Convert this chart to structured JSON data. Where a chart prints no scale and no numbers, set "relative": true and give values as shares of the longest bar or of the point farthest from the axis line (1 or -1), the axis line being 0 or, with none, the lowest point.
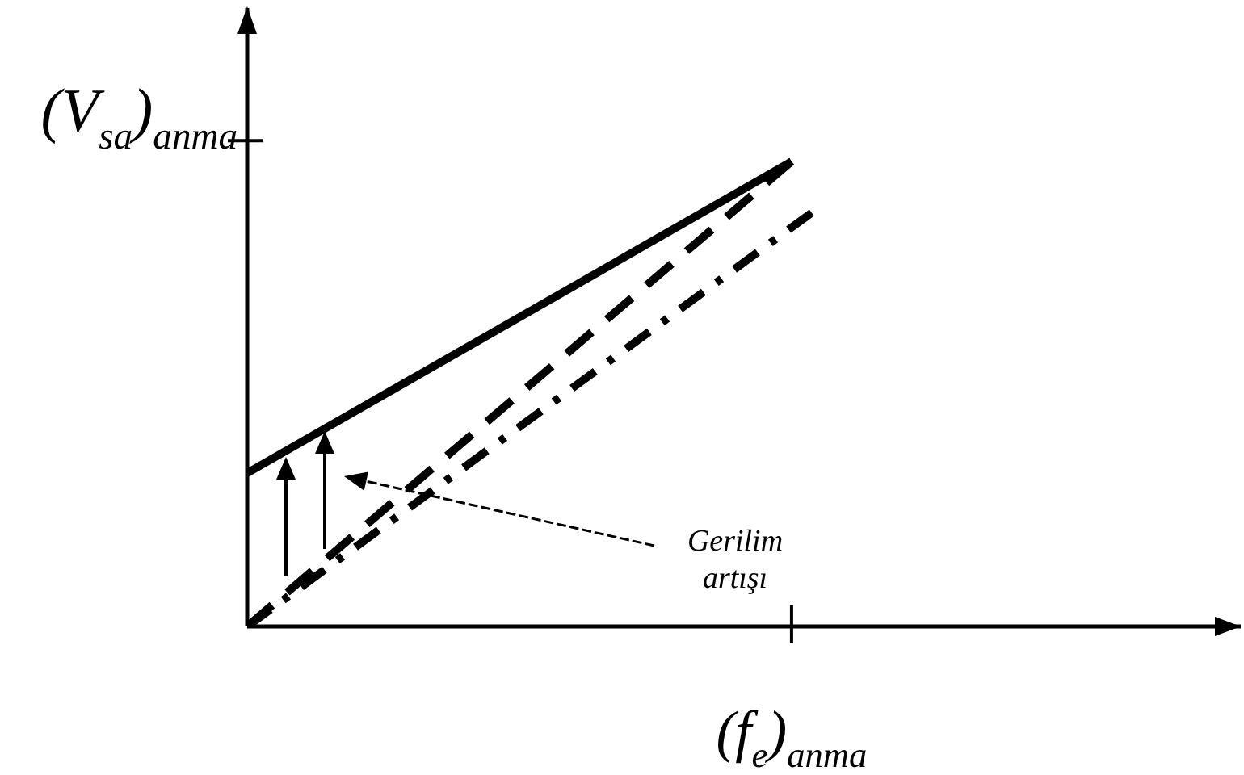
{
  "chart_data": {
    "type": "line",
    "relative": true,
    "categories": [
      null,
      null,
      null,
      null,
      null,
      null,
      null,
      null,
      null,
      null,
      null,
      null,
      null,
      null,
      null,
      null,
      null,
      null,
      null,
      null,
      null,
      null,
      null,
      null,
      null,
      null,
      null,
      null,
      null
    ],
    "xlabel": "(f$_{e}$)$_{anma}$",
    "ylabel": "(V$_{sa}$)$_{anma}$",
    "series": [
      {
        "color": "#000000",
        "values": [
          0.33,
          null,
          null,
          null,
          null,
          null,
          null,
          null,
          null,
          null,
          null,
          null,
          null,
          null,
          null,
          null,
          null,
          null,
          null,
          null,
          null,
          null,
          null,
          null,
          null,
          null,
          null,
          1,
          null
        ],
        "line_style": "solid"
      },
      {
        "color": "#000000",
        "values": [
          0,
          null,
          null,
          null,
          null,
          null,
          null,
          null,
          null,
          null,
          null,
          null,
          null,
          null,
          null,
          null,
          null,
          null,
          null,
          null,
          null,
          null,
          null,
          null,
          null,
          null,
          null,
          1,
          null
        ],
        "line_style": "dashed"
      },
      {
        "color": "#000000",
        "values": [
          0,
          null,
          null,
          null,
          null,
          null,
          null,
          null,
          null,
          null,
          null,
          null,
          null,
          null,
          null,
          null,
          null,
          null,
          null,
          null,
          null,
          null,
          null,
          null,
          null,
          null,
          null,
          null,
          0.89
        ],
        "line_style": "dashdot"
      }
    ],
    "annotations": [
      "Gerilim artışı"
    ]
  }
}
